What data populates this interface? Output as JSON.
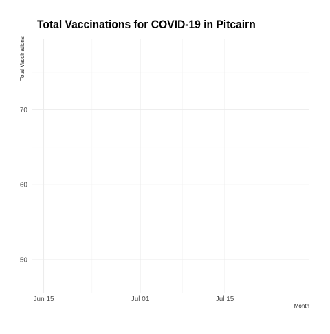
{
  "chart_data": {
    "type": "line",
    "title": "Total Vaccinations for COVID-19 in Pitcairn",
    "xlabel": "Month",
    "ylabel": "Total Vaccinations",
    "x_ticks": [
      "Jun 15",
      "Jul 01",
      "Jul 15"
    ],
    "x_tick_dates": [
      "2021-06-15",
      "2021-07-01",
      "2021-07-15"
    ],
    "xlim": [
      "2021-06-13",
      "2021-07-29"
    ],
    "y_ticks": [
      50,
      60,
      70
    ],
    "ylim": [
      45.5,
      79.5
    ],
    "grid": true,
    "series": []
  }
}
